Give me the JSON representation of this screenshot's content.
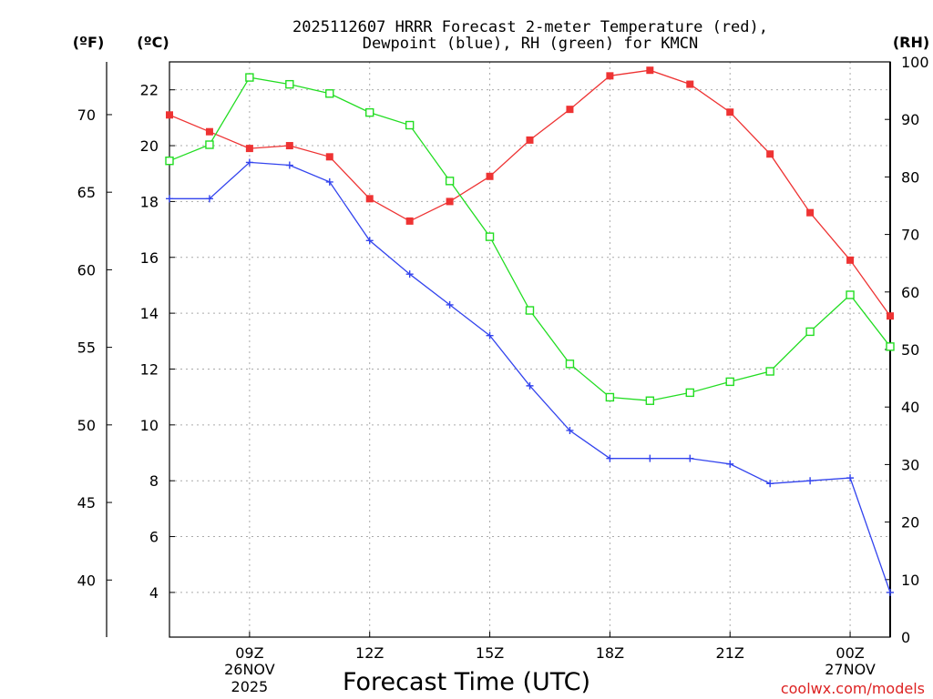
{
  "chart_data": {
    "type": "line",
    "title_line1": "2025112607 HRRR Forecast 2-meter Temperature (red),",
    "title_line2": "Dewpoint (blue), RH (green) for KMCN",
    "unit_f": "(ºF)",
    "unit_c": "(ºC)",
    "unit_rh": "(RH)",
    "xlabel": "Forecast Time (UTC)",
    "watermark": "coolwx.com/models",
    "x_hours": [
      7,
      8,
      9,
      10,
      11,
      12,
      13,
      14,
      15,
      16,
      17,
      18,
      19,
      20,
      21,
      22,
      23,
      24,
      25
    ],
    "xlim": [
      7,
      25
    ],
    "x_ticks": [
      {
        "hour": 9,
        "label": "09Z",
        "date": "26NOV",
        "year": "2025"
      },
      {
        "hour": 12,
        "label": "12Z",
        "date": "",
        "year": ""
      },
      {
        "hour": 15,
        "label": "15Z",
        "date": "",
        "year": ""
      },
      {
        "hour": 18,
        "label": "18Z",
        "date": "",
        "year": ""
      },
      {
        "hour": 21,
        "label": "21Z",
        "date": "",
        "year": ""
      },
      {
        "hour": 24,
        "label": "00Z",
        "date": "27NOV",
        "year": ""
      }
    ],
    "celsius_axis": {
      "lim": [
        2.4,
        23.0
      ],
      "ticks": [
        "4",
        "6",
        "8",
        "10",
        "12",
        "14",
        "16",
        "18",
        "20",
        "22"
      ]
    },
    "fahrenheit_axis": {
      "ticks": [
        "40",
        "45",
        "50",
        "55",
        "60",
        "65",
        "70"
      ]
    },
    "rh_axis": {
      "lim": [
        0,
        100
      ],
      "ticks": [
        "0",
        "10",
        "20",
        "30",
        "40",
        "50",
        "60",
        "70",
        "80",
        "90",
        "100"
      ]
    },
    "series": [
      {
        "name": "Temperature",
        "axis": "celsius",
        "color": "#ee3333",
        "marker": "filled-square",
        "values": [
          21.1,
          20.5,
          19.9,
          20.0,
          19.6,
          18.1,
          17.3,
          18.0,
          18.9,
          20.2,
          21.3,
          22.5,
          22.7,
          22.2,
          21.2,
          19.7,
          17.6,
          15.9,
          13.9
        ]
      },
      {
        "name": "Dewpoint",
        "axis": "celsius",
        "color": "#3344ee",
        "marker": "plus",
        "values": [
          18.1,
          18.1,
          19.4,
          19.3,
          18.7,
          16.6,
          15.4,
          14.3,
          13.2,
          11.4,
          9.8,
          8.8,
          8.8,
          8.8,
          8.6,
          7.9,
          8.0,
          8.1,
          4.0
        ]
      },
      {
        "name": "RH",
        "axis": "rh",
        "color": "#22dd22",
        "marker": "open-square",
        "values": [
          82.8,
          85.6,
          97.3,
          96.1,
          94.5,
          91.2,
          89.0,
          79.3,
          69.6,
          56.8,
          47.5,
          41.7,
          41.1,
          42.5,
          44.4,
          46.2,
          53.1,
          59.5,
          50.5
        ]
      }
    ]
  }
}
